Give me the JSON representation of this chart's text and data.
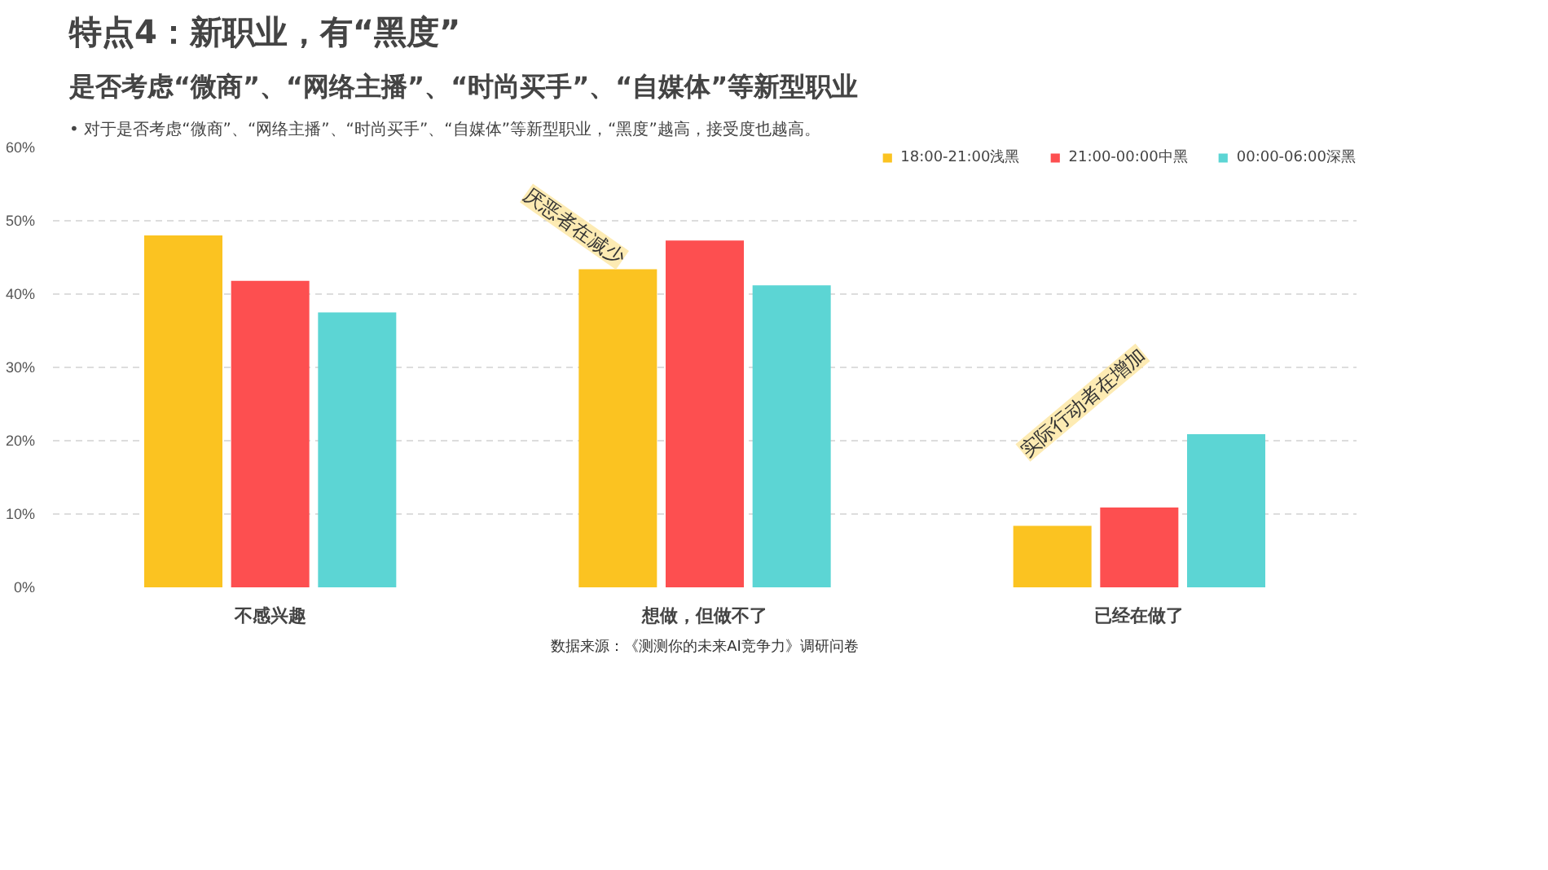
{
  "chart_data": {
    "type": "bar",
    "title": "特点4：新职业，有“黑度”",
    "subtitle": "是否考虑“微商”、“网络主播”、“时尚买手”、“自媒体”等新型职业",
    "annotations": [
      "• 对于是否考虑“微商”、“网络主播”、“时尚买手”、“自媒体”等新型职业，“黑度”越高，接受度也越高。",
      "厌恶者在减少",
      "实际行动者在增加",
      "数据来源：《测测你的未来AI竞争力》调研问卷"
    ],
    "categories": [
      "不感兴趣",
      "想做，但做不了",
      "已经在做了"
    ],
    "series": [
      {
        "name": "18:00-21:00浅黑",
        "color": "#fbc321",
        "values": [
          48,
          43.4,
          8.4
        ]
      },
      {
        "name": "21:00-00:00中黑",
        "color": "#fd4f50",
        "values": [
          41.8,
          47.3,
          10.9
        ]
      },
      {
        "name": "00:00-06:00深黑",
        "color": "#5cd5d4",
        "values": [
          37.5,
          41.2,
          20.9
        ]
      }
    ],
    "ylim": [
      0,
      60
    ],
    "yticks": [
      {
        "value": 0,
        "label": "0%"
      },
      {
        "value": 10,
        "label": "10%"
      },
      {
        "value": 20,
        "label": "20%"
      },
      {
        "value": 30,
        "label": "30%"
      },
      {
        "value": 40,
        "label": "40%"
      },
      {
        "value": 50,
        "label": "50%"
      },
      {
        "value": 60,
        "label": "60%"
      }
    ],
    "grid": "y",
    "legend": "top right"
  }
}
